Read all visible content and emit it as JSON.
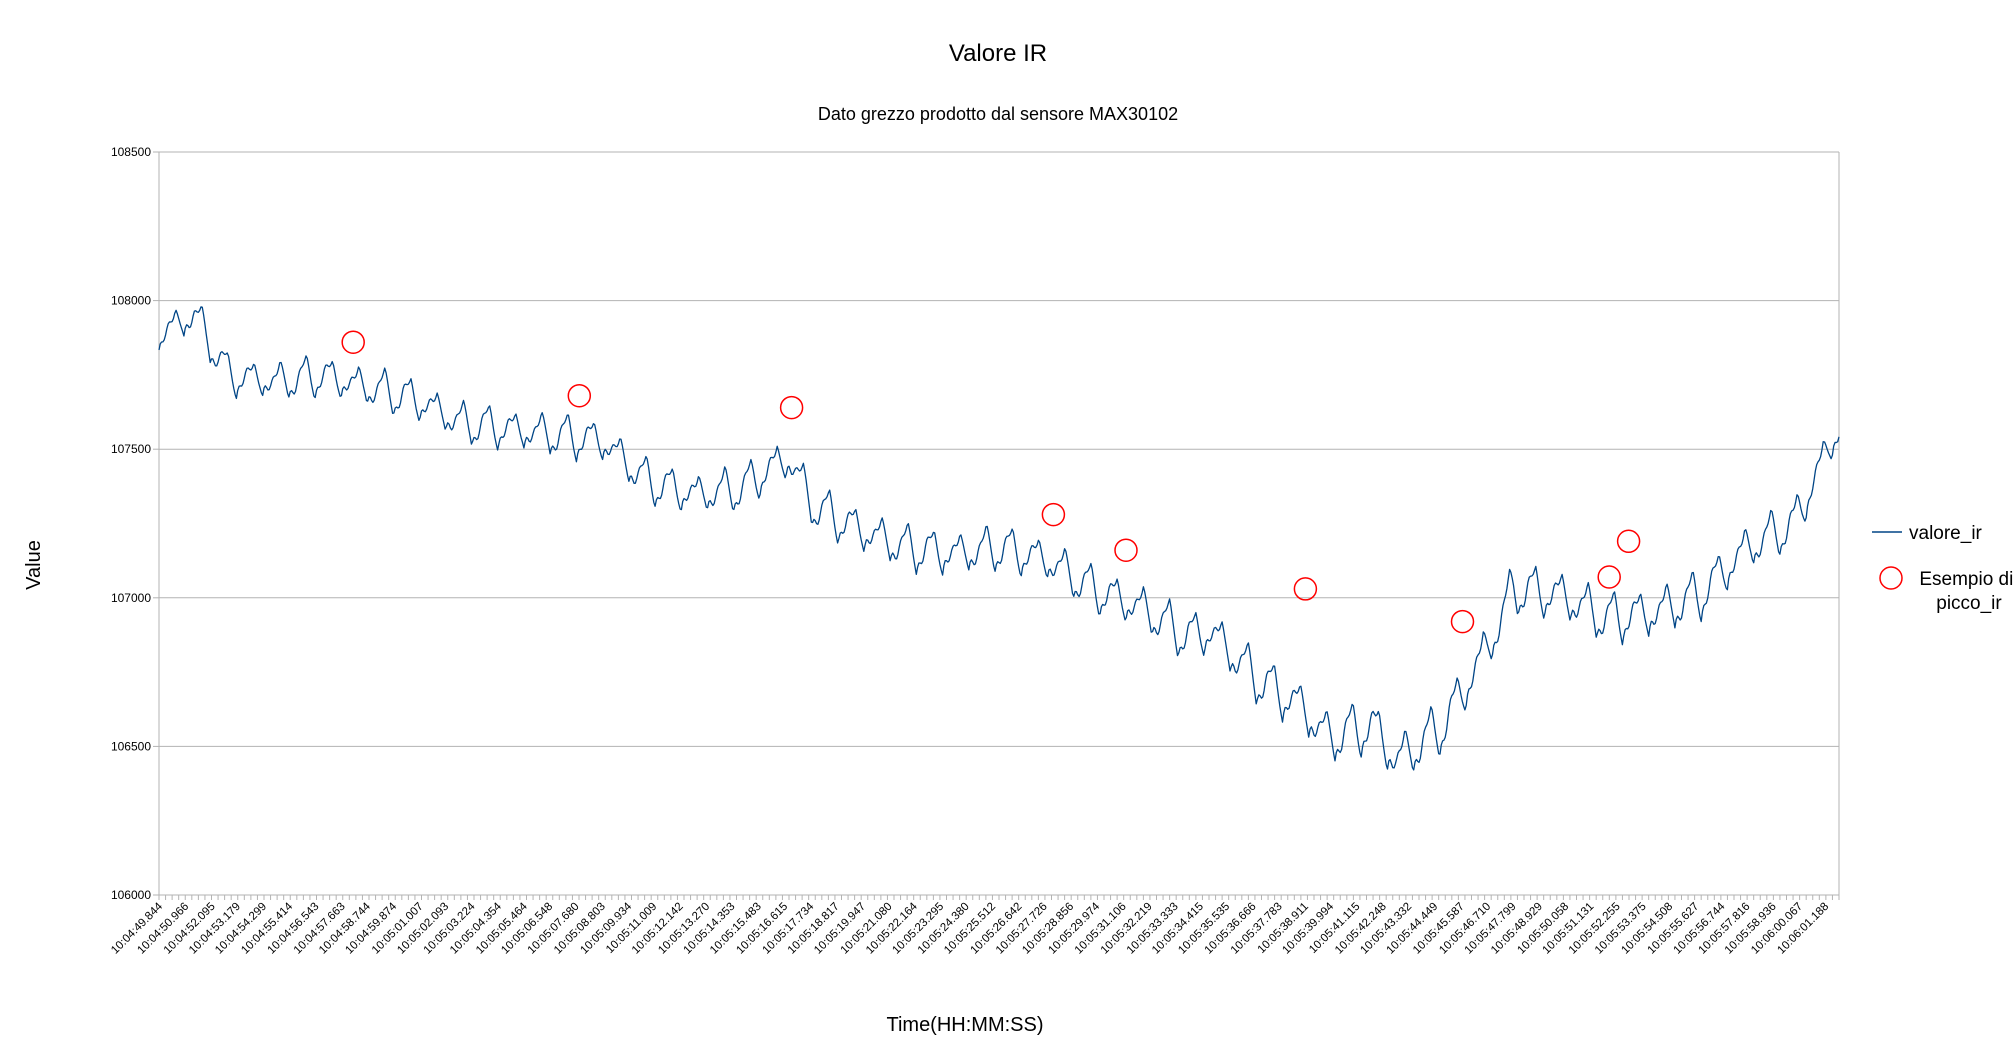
{
  "chart_data": {
    "type": "line",
    "title": "Valore IR",
    "subtitle": "Dato grezzo prodotto dal sensore MAX30102",
    "xlabel": "Time(HH:MM:SS)",
    "ylabel": "Value",
    "ylim": [
      106000,
      108500
    ],
    "yticks": [
      106000,
      106500,
      107000,
      107500,
      108000,
      108500
    ],
    "grid": "horizontal",
    "legend": "right",
    "x_start": "10:04:49.844",
    "x_end": "10:06:01.780",
    "x_tick_labels": [
      "10:04:49.844",
      "10:04:50.966",
      "10:04:52.095",
      "10:04:53.179",
      "10:04:54.299",
      "10:04:55.414",
      "10:04:56.543",
      "10:04:57.663",
      "10:04:58.744",
      "10:04:59.874",
      "10:05:01.007",
      "10:05:02.093",
      "10:05:03.224",
      "10:05:04.354",
      "10:05:05.464",
      "10:05:06.548",
      "10:05:07.680",
      "10:05:08.803",
      "10:05:09.934",
      "10:05:11.009",
      "10:05:12.142",
      "10:05:13.270",
      "10:05:14.353",
      "10:05:15.483",
      "10:05:16.615",
      "10:05:17.734",
      "10:05:18.817",
      "10:05:19.947",
      "10:05:21.080",
      "10:05:22.164",
      "10:05:23.295",
      "10:05:24.380",
      "10:05:25.512",
      "10:05:26.642",
      "10:05:27.726",
      "10:05:28.856",
      "10:05:29.974",
      "10:05:31.106",
      "10:05:32.219",
      "10:05:33.333",
      "10:05:34.415",
      "10:05:35.535",
      "10:05:36.666",
      "10:05:37.783",
      "10:05:38.911",
      "10:05:39.994",
      "10:05:41.115",
      "10:05:42.248",
      "10:05:43.332",
      "10:05:44.449",
      "10:05:45.587",
      "10:05:46.710",
      "10:05:47.799",
      "10:05:48.929",
      "10:05:50.058",
      "10:05:51.131",
      "10:05:52.255",
      "10:05:53.375",
      "10:05:54.508",
      "10:05:55.627",
      "10:05:56.744",
      "10:05:57.816",
      "10:05:58.936",
      "10:06:00.067",
      "10:06:01.188"
    ],
    "series": [
      {
        "name": "valore_ir",
        "color": "#004586",
        "sample_period_s": 0.0562,
        "trend_anchors": [
          [
            0,
            107870
          ],
          [
            1.5,
            107950
          ],
          [
            3,
            107740
          ],
          [
            5,
            107720
          ],
          [
            7,
            107740
          ],
          [
            9,
            107700
          ],
          [
            11,
            107660
          ],
          [
            13,
            107580
          ],
          [
            15,
            107560
          ],
          [
            17,
            107540
          ],
          [
            19,
            107520
          ],
          [
            21,
            107380
          ],
          [
            23,
            107340
          ],
          [
            25,
            107360
          ],
          [
            26,
            107420
          ],
          [
            27,
            107460
          ],
          [
            28,
            107300
          ],
          [
            30,
            107220
          ],
          [
            32,
            107160
          ],
          [
            34,
            107140
          ],
          [
            36,
            107160
          ],
          [
            38,
            107120
          ],
          [
            40,
            107020
          ],
          [
            42,
            106960
          ],
          [
            44,
            106860
          ],
          [
            45,
            106880
          ],
          [
            47,
            106720
          ],
          [
            49,
            106620
          ],
          [
            50,
            106520
          ],
          [
            52,
            106560
          ],
          [
            53,
            106440
          ],
          [
            55,
            106560
          ],
          [
            57,
            106840
          ],
          [
            58,
            107020
          ],
          [
            60,
            107000
          ],
          [
            62,
            106920
          ],
          [
            64,
            106940
          ],
          [
            66,
            107000
          ],
          [
            68,
            107160
          ],
          [
            70,
            107240
          ],
          [
            71.94,
            107570
          ]
        ],
        "amplitude_anchors": [
          [
            0,
            130
          ],
          [
            20,
            140
          ],
          [
            28,
            150
          ],
          [
            40,
            150
          ],
          [
            52,
            180
          ],
          [
            58,
            170
          ],
          [
            64,
            170
          ],
          [
            71.94,
            150
          ]
        ]
      },
      {
        "name": "Esempio di picco_ir",
        "color": "#ff0000",
        "marker": "open-circle",
        "points": [
          {
            "x": "10:04:58.160",
            "y": 107860
          },
          {
            "x": "10:05:07.840",
            "y": 107680
          },
          {
            "x": "10:05:16.930",
            "y": 107640
          },
          {
            "x": "10:05:28.140",
            "y": 107280
          },
          {
            "x": "10:05:31.250",
            "y": 107160
          },
          {
            "x": "10:05:38.930",
            "y": 107030
          },
          {
            "x": "10:05:45.660",
            "y": 106920
          },
          {
            "x": "10:05:51.940",
            "y": 107070
          },
          {
            "x": "10:05:52.770",
            "y": 107190
          }
        ]
      }
    ]
  }
}
